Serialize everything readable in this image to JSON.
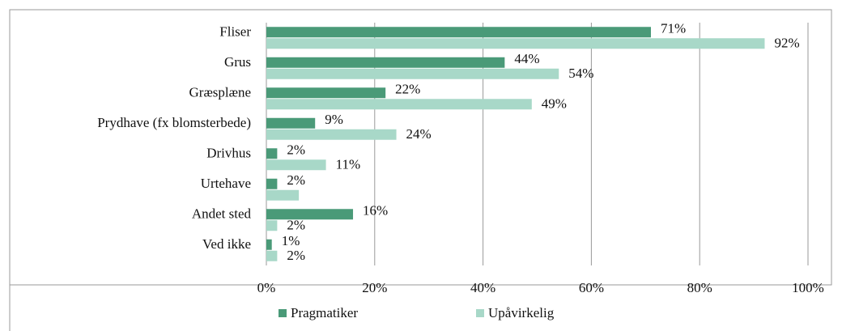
{
  "chart_data": {
    "type": "bar",
    "orientation": "horizontal",
    "categories": [
      "Fliser",
      "Grus",
      "Græsplæne",
      "Prydhave (fx blomsterbede)",
      "Drivhus",
      "Urtehave",
      "Andet sted",
      "Ved ikke"
    ],
    "series": [
      {
        "name": "Pragmatiker",
        "color": "#4a9a78",
        "values": [
          71,
          44,
          22,
          9,
          2,
          2,
          16,
          1
        ],
        "value_labels": [
          "71%",
          "44%",
          "22%",
          "9%",
          "2%",
          "2%",
          "16%",
          "1%"
        ]
      },
      {
        "name": "Upåvirkelig",
        "color": "#a8d8c8",
        "values": [
          92,
          54,
          49,
          24,
          11,
          6,
          2,
          2
        ],
        "value_labels": [
          "92%",
          "54%",
          "49%",
          "24%",
          "11%",
          null,
          "2%",
          "2%"
        ]
      }
    ],
    "xlim": [
      0,
      100
    ],
    "xticks": [
      {
        "value": 0,
        "label": "0%"
      },
      {
        "value": 20,
        "label": "20%"
      },
      {
        "value": 40,
        "label": "40%"
      },
      {
        "value": 60,
        "label": "60%"
      },
      {
        "value": 80,
        "label": "80%"
      },
      {
        "value": 100,
        "label": "100%"
      }
    ],
    "grid": true,
    "legend": "bottom"
  }
}
